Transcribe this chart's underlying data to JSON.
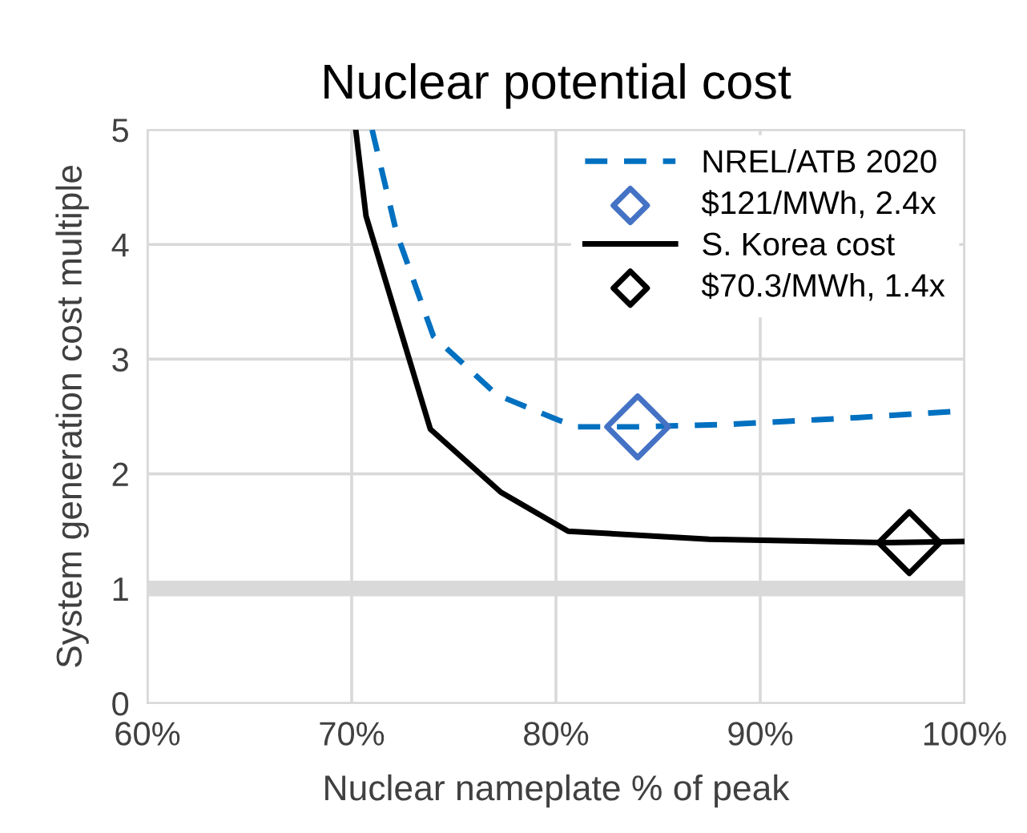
{
  "chart_data": {
    "type": "line",
    "title": "Nuclear potential cost",
    "xlabel": "Nuclear nameplate % of peak",
    "ylabel": "System generation cost multiple",
    "series": [
      {
        "name": "NREL/ATB 2020",
        "color": "#0070c0",
        "line_style": "dashed",
        "marker": "none",
        "x": [
          71.0,
          72.2,
          74.0,
          77.1,
          80.1,
          81.0,
          84.0,
          88.3,
          94.7,
          100
        ],
        "values": [
          5.0,
          4.1,
          3.2,
          2.69,
          2.47,
          2.41,
          2.41,
          2.43,
          2.49,
          2.55
        ]
      },
      {
        "name": "$121/MWh, 2.4x",
        "type": "scatter",
        "color": "#4472c4",
        "marker": "diamond",
        "x": [
          84.0
        ],
        "values": [
          2.41
        ]
      },
      {
        "name": "S. Korea cost",
        "color": "#000000",
        "line_style": "solid",
        "marker": "none",
        "x": [
          70.2,
          70.7,
          73.85,
          77.3,
          80.6,
          87.5,
          96.1,
          100
        ],
        "values": [
          5.0,
          4.25,
          2.39,
          1.84,
          1.5,
          1.43,
          1.4,
          1.41
        ]
      },
      {
        "name": "$70.3/MWh, 1.4x",
        "type": "scatter",
        "color": "#000000",
        "marker": "diamond",
        "x": [
          97.3
        ],
        "values": [
          1.4
        ]
      }
    ],
    "xlim": [
      60,
      100
    ],
    "xticks": [
      {
        "value": 60,
        "label": "60%"
      },
      {
        "value": 70,
        "label": "70%"
      },
      {
        "value": 80,
        "label": "80%"
      },
      {
        "value": 90,
        "label": "90%"
      },
      {
        "value": 100,
        "label": "100%"
      }
    ],
    "ylim": [
      0,
      5
    ],
    "yticks": [
      0,
      1,
      2,
      3,
      4,
      5
    ],
    "ref_lines": [
      {
        "axis": "y",
        "value": 1,
        "color": "#d9d9d9"
      }
    ],
    "grid": true,
    "legend": "top right"
  }
}
